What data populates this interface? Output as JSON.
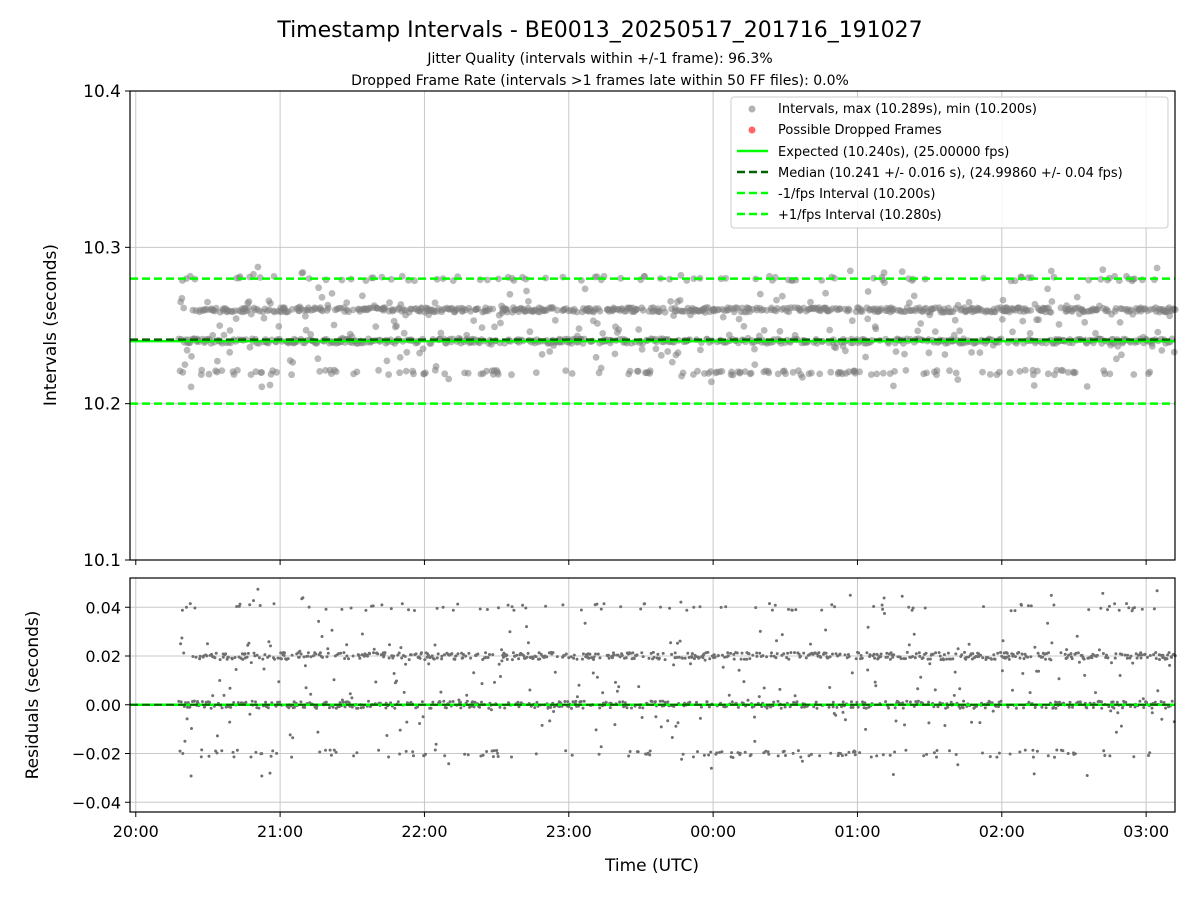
{
  "title": "Timestamp Intervals - BE0013_20250517_201716_191027",
  "subtitle_1": "Jitter Quality (intervals within +/-1 frame): 96.3%",
  "subtitle_2": "Dropped Frame Rate (intervals >1 frames late within 50 FF files): 0.0%",
  "colors": {
    "points": "#808080",
    "dropped": "#ff0000",
    "expected": "#00ff00",
    "median": "#006400",
    "interval": "#00ff00",
    "grid": "#c8c8c8"
  },
  "chart_data": [
    {
      "type": "scatter",
      "name": "intervals",
      "ylabel": "Intervals (seconds)",
      "xlabel": "",
      "xlim_hours": [
        19.96,
        27.2
      ],
      "ylim": [
        10.1,
        10.4
      ],
      "y_ticks": [
        "10.1",
        "10.2",
        "10.3",
        "10.4"
      ],
      "y_tick_values": [
        10.1,
        10.2,
        10.3,
        10.4
      ],
      "grid": true,
      "legend_position": "top-right",
      "series": [
        {
          "name": "Intervals, max (10.289s), min (10.200s)",
          "kind": "points",
          "levels": [
            10.22,
            10.24,
            10.26,
            10.28
          ],
          "x_range_hours": [
            20.3,
            27.2
          ],
          "max": 10.289,
          "min": 10.2
        },
        {
          "name": "Possible Dropped Frames",
          "kind": "points",
          "values": []
        },
        {
          "name": "Expected (10.240s), (25.00000 fps)",
          "kind": "hline",
          "style": "solid",
          "y": 10.24
        },
        {
          "name": "Median (10.241 +/- 0.016 s), (24.99860 +/- 0.04 fps)",
          "kind": "hline",
          "style": "dashed",
          "y": 10.241
        },
        {
          "name": "-1/fps Interval (10.200s)",
          "kind": "hline",
          "style": "dashed",
          "y": 10.2
        },
        {
          "name": "+1/fps Interval (10.280s)",
          "kind": "hline",
          "style": "dashed",
          "y": 10.28
        }
      ]
    },
    {
      "type": "scatter",
      "name": "residuals",
      "ylabel": "Residuals (seconds)",
      "xlabel": "Time (UTC)",
      "xlim_hours": [
        19.96,
        27.2
      ],
      "ylim": [
        -0.044,
        0.052
      ],
      "y_ticks": [
        "−0.04",
        "−0.02",
        "0.00",
        "0.02",
        "0.04"
      ],
      "y_tick_values": [
        -0.04,
        -0.02,
        0.0,
        0.02,
        0.04
      ],
      "x_ticks": [
        "20:00",
        "21:00",
        "22:00",
        "23:00",
        "00:00",
        "01:00",
        "02:00",
        "03:00"
      ],
      "x_tick_hours": [
        20,
        21,
        22,
        23,
        24,
        25,
        26,
        27
      ],
      "grid": true,
      "series": [
        {
          "name": "Residuals",
          "kind": "points",
          "levels": [
            -0.02,
            0.0,
            0.02,
            0.04
          ],
          "x_range_hours": [
            20.3,
            27.2
          ]
        },
        {
          "name": "Zero",
          "kind": "hline",
          "style": "solid",
          "y": 0.0
        }
      ]
    }
  ]
}
